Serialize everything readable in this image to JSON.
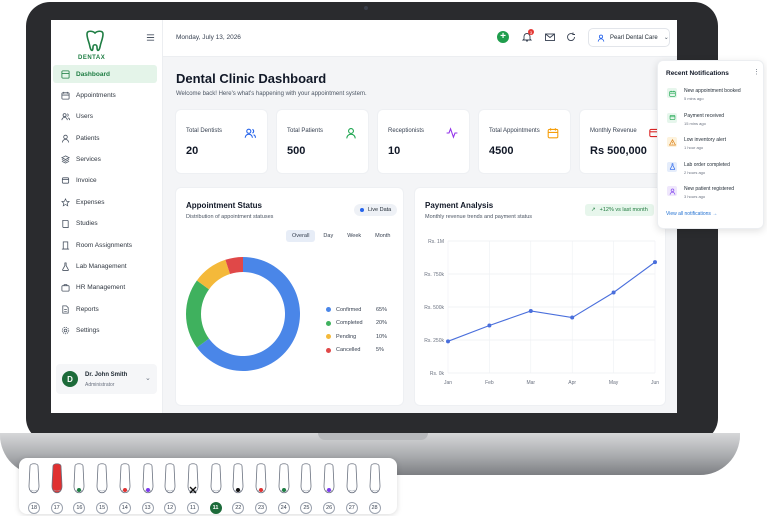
{
  "app": {
    "logo_text": "DENTAX"
  },
  "sidebar": {
    "items": [
      {
        "label": "Dashboard",
        "icon": "grid-icon",
        "active": true
      },
      {
        "label": "Appointments",
        "icon": "calendar-icon"
      },
      {
        "label": "Users",
        "icon": "users-icon"
      },
      {
        "label": "Patients",
        "icon": "user-icon"
      },
      {
        "label": "Services",
        "icon": "layers-icon"
      },
      {
        "label": "Invoice",
        "icon": "invoice-icon"
      },
      {
        "label": "Expenses",
        "icon": "star-icon"
      },
      {
        "label": "Studies",
        "icon": "book-icon"
      },
      {
        "label": "Room Assignments",
        "icon": "door-icon"
      },
      {
        "label": "Lab Management",
        "icon": "flask-icon"
      },
      {
        "label": "HR Management",
        "icon": "briefcase-icon"
      },
      {
        "label": "Reports",
        "icon": "report-icon"
      },
      {
        "label": "Settings",
        "icon": "gear-icon"
      }
    ],
    "user": {
      "initial": "D",
      "name": "Dr. John Smith",
      "role": "Administrator"
    }
  },
  "topbar": {
    "date": "Monday, July 13, 2026",
    "notification_count": "3",
    "clinic": "Pearl Dental Care"
  },
  "page": {
    "title": "Dental Clinic Dashboard",
    "subtitle": "Welcome back! Here's what's happening with your appointment system."
  },
  "stats": [
    {
      "label": "Total Dentists",
      "value": "20",
      "icon": "users-icon",
      "color": "#2563eb"
    },
    {
      "label": "Total Patients",
      "value": "500",
      "icon": "user-icon",
      "color": "#16a34a"
    },
    {
      "label": "Receptionists",
      "value": "10",
      "icon": "activity-icon",
      "color": "#9333ea"
    },
    {
      "label": "Total Appointments",
      "value": "4500",
      "icon": "calendar-icon",
      "color": "#f59e0b"
    },
    {
      "label": "Monthly Revenue",
      "value": "Rs 500,000",
      "icon": "invoice-icon",
      "color": "#dc2626"
    }
  ],
  "appointment_status": {
    "title": "Appointment Status",
    "subtitle": "Distribution of appointment statuses",
    "live_label": "Live Data",
    "tabs": [
      "Overall",
      "Day",
      "Week",
      "Month"
    ],
    "active_tab": "Overall"
  },
  "payment_analysis": {
    "title": "Payment Analysis",
    "subtitle": "Monthly revenue trends and payment status",
    "trend_label": "+12% vs last month"
  },
  "notifications": {
    "title": "Recent Notifications",
    "items": [
      {
        "text": "New appointment booked",
        "time": "5 mins ago",
        "icon": "calendar-icon",
        "color": "#16a34a",
        "bg": "#e6f6ec"
      },
      {
        "text": "Payment received",
        "time": "15 mins ago",
        "icon": "invoice-icon",
        "color": "#16a34a",
        "bg": "#e6f6ec"
      },
      {
        "text": "Low inventory alert",
        "time": "1 hour ago",
        "icon": "warning-icon",
        "color": "#d97706",
        "bg": "#fdf2dc"
      },
      {
        "text": "Lab order completed",
        "time": "2 hours ago",
        "icon": "flask-icon",
        "color": "#2563eb",
        "bg": "#e5edfb"
      },
      {
        "text": "New patient registered",
        "time": "3 hours ago",
        "icon": "user-icon",
        "color": "#7c3aed",
        "bg": "#efe7fc"
      }
    ],
    "link": "View all notifications →"
  },
  "teeth": {
    "numbers": [
      "18",
      "17",
      "16",
      "15",
      "14",
      "13",
      "12",
      "11",
      "11",
      "22",
      "23",
      "24",
      "25",
      "26",
      "27",
      "28"
    ],
    "selected_index": 8
  },
  "chart_data": [
    {
      "type": "pie",
      "title": "Appointment Status",
      "categories": [
        "Confirmed",
        "Completed",
        "Pending",
        "Cancelled"
      ],
      "values": [
        65,
        20,
        10,
        5
      ],
      "value_labels": [
        "65%",
        "20%",
        "10%",
        "5%"
      ],
      "colors": [
        "#4a86e8",
        "#3fb15e",
        "#f4b93a",
        "#e04848"
      ],
      "legend": "right"
    },
    {
      "type": "line",
      "title": "Payment Analysis",
      "categories": [
        "Jan",
        "Feb",
        "Mar",
        "Apr",
        "May",
        "Jun"
      ],
      "series": [
        {
          "values": [
            240000,
            360000,
            470000,
            420000,
            610000,
            840000
          ],
          "color": "#4a6fdc"
        }
      ],
      "yticks": [
        "Rs. 0k",
        "Rs. 250k",
        "Rs. 500k",
        "Rs. 750k",
        "Rs. 1M"
      ],
      "ylim": [
        0,
        1000000
      ],
      "grid": true
    }
  ]
}
